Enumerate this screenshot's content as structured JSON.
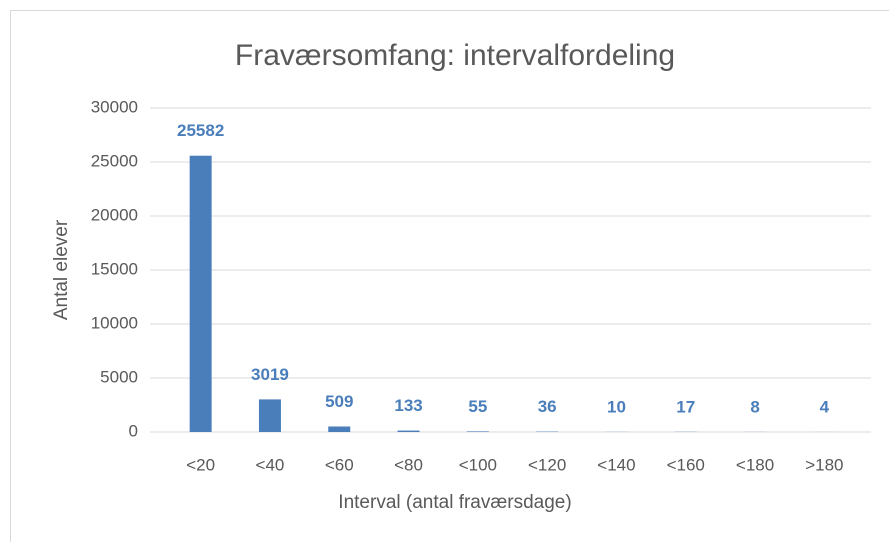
{
  "chart_data": {
    "type": "bar",
    "title": "Fraværsomfang: intervalfordeling",
    "x_label": "Interval (antal fraværsdage)",
    "y_label": "Antal elever",
    "categories": [
      "<20",
      "<40",
      "<60",
      "<80",
      "<100",
      "<120",
      "<140",
      "<160",
      "<180",
      ">180"
    ],
    "values": [
      25582,
      3019,
      509,
      133,
      55,
      36,
      10,
      17,
      8,
      4
    ],
    "color": "#4a7ebb",
    "label_color": "#4a7ebb",
    "ylim": [
      0,
      30000
    ],
    "yticks": [
      0,
      5000,
      10000,
      15000,
      20000,
      25000,
      30000
    ],
    "grid": true
  }
}
